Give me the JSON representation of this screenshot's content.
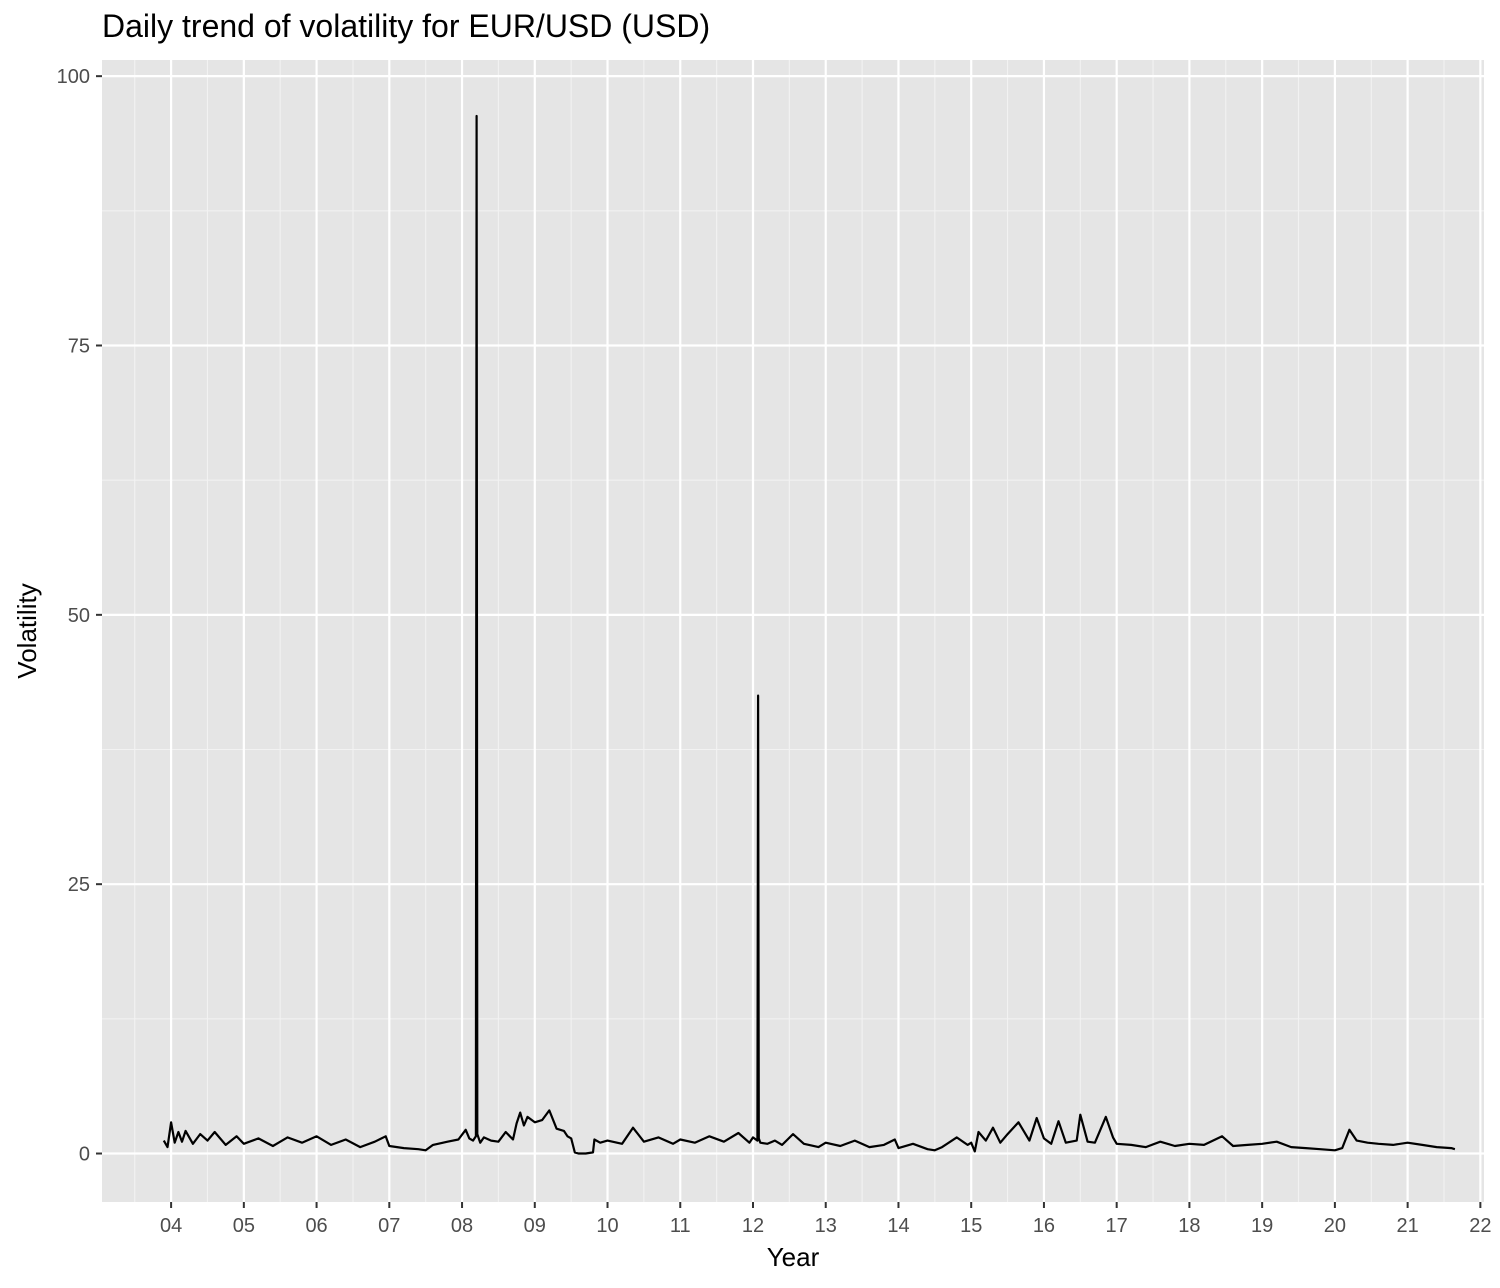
{
  "chart_data": {
    "type": "line",
    "title": "Daily trend of volatility for EUR/USD (USD)",
    "xlabel": "Year",
    "ylabel": "Volatility",
    "x_unit": "year",
    "xlim": [
      2003.05,
      2022.05
    ],
    "ylim": [
      -4.5,
      101.5
    ],
    "x_ticks": [
      {
        "value": 2004,
        "label": "04"
      },
      {
        "value": 2005,
        "label": "05"
      },
      {
        "value": 2006,
        "label": "06"
      },
      {
        "value": 2007,
        "label": "07"
      },
      {
        "value": 2008,
        "label": "08"
      },
      {
        "value": 2009,
        "label": "09"
      },
      {
        "value": 2010,
        "label": "10"
      },
      {
        "value": 2011,
        "label": "11"
      },
      {
        "value": 2012,
        "label": "12"
      },
      {
        "value": 2013,
        "label": "13"
      },
      {
        "value": 2014,
        "label": "14"
      },
      {
        "value": 2015,
        "label": "15"
      },
      {
        "value": 2016,
        "label": "16"
      },
      {
        "value": 2017,
        "label": "17"
      },
      {
        "value": 2018,
        "label": "18"
      },
      {
        "value": 2019,
        "label": "19"
      },
      {
        "value": 2020,
        "label": "20"
      },
      {
        "value": 2021,
        "label": "21"
      },
      {
        "value": 2022,
        "label": "22"
      }
    ],
    "y_ticks": [
      {
        "value": 0,
        "label": "0"
      },
      {
        "value": 25,
        "label": "25"
      },
      {
        "value": 50,
        "label": "50"
      },
      {
        "value": 75,
        "label": "75"
      },
      {
        "value": 100,
        "label": "100"
      }
    ],
    "grid": true,
    "legend": "none",
    "colors": {
      "panel": "#e5e5e5",
      "grid": "#ffffff",
      "line": "#000000",
      "tick_text": "#4d4d4d"
    },
    "series": [
      {
        "x": [
          2003.9,
          2003.95,
          2004.0,
          2004.05,
          2004.1,
          2004.15,
          2004.2,
          2004.3,
          2004.4,
          2004.5,
          2004.6,
          2004.75,
          2004.9,
          2005.0,
          2005.2,
          2005.4,
          2005.6,
          2005.8,
          2006.0,
          2006.2,
          2006.4,
          2006.6,
          2006.8,
          2006.95,
          2007.0,
          2007.2,
          2007.4,
          2007.5,
          2007.6,
          2007.8,
          2007.95,
          2008.05,
          2008.1,
          2008.15,
          2008.19,
          2008.2,
          2008.21,
          2008.25,
          2008.3,
          2008.4,
          2008.5,
          2008.6,
          2008.7,
          2008.75,
          2008.8,
          2008.85,
          2008.9,
          2009.0,
          2009.1,
          2009.2,
          2009.3,
          2009.4,
          2009.45,
          2009.5,
          2009.55,
          2009.6,
          2009.7,
          2009.8,
          2009.82,
          2009.9,
          2010.0,
          2010.2,
          2010.35,
          2010.5,
          2010.7,
          2010.9,
          2011.0,
          2011.2,
          2011.4,
          2011.6,
          2011.8,
          2011.95,
          2012.0,
          2012.06,
          2012.07,
          2012.08,
          2012.1,
          2012.2,
          2012.3,
          2012.4,
          2012.55,
          2012.7,
          2012.9,
          2013.0,
          2013.2,
          2013.4,
          2013.6,
          2013.8,
          2013.95,
          2014.0,
          2014.2,
          2014.4,
          2014.5,
          2014.6,
          2014.8,
          2014.95,
          2015.0,
          2015.05,
          2015.1,
          2015.2,
          2015.3,
          2015.4,
          2015.5,
          2015.65,
          2015.8,
          2015.9,
          2016.0,
          2016.1,
          2016.2,
          2016.3,
          2016.45,
          2016.5,
          2016.6,
          2016.7,
          2016.85,
          2016.95,
          2017.0,
          2017.2,
          2017.4,
          2017.6,
          2017.8,
          2018.0,
          2018.2,
          2018.45,
          2018.6,
          2018.8,
          2019.0,
          2019.2,
          2019.4,
          2019.6,
          2019.8,
          2020.0,
          2020.1,
          2020.2,
          2020.3,
          2020.45,
          2020.6,
          2020.8,
          2021.0,
          2021.2,
          2021.4,
          2021.6,
          2021.65
        ],
        "y": [
          1.2,
          0.6,
          2.9,
          1.0,
          2.0,
          1.1,
          2.1,
          0.9,
          1.8,
          1.2,
          2.0,
          0.8,
          1.6,
          0.9,
          1.4,
          0.7,
          1.5,
          1.0,
          1.6,
          0.8,
          1.3,
          0.6,
          1.1,
          1.6,
          0.7,
          0.5,
          0.4,
          0.3,
          0.8,
          1.1,
          1.3,
          2.2,
          1.4,
          1.2,
          1.6,
          96.3,
          1.8,
          1.0,
          1.5,
          1.2,
          1.1,
          2.0,
          1.3,
          2.8,
          3.8,
          2.6,
          3.4,
          2.9,
          3.1,
          4.0,
          2.3,
          2.1,
          1.6,
          1.4,
          0.1,
          0.0,
          0.0,
          0.1,
          1.3,
          1.0,
          1.2,
          0.9,
          2.4,
          1.1,
          1.5,
          0.9,
          1.3,
          1.0,
          1.6,
          1.1,
          1.9,
          1.0,
          1.5,
          1.2,
          42.5,
          1.4,
          1.0,
          0.9,
          1.2,
          0.8,
          1.8,
          0.9,
          0.6,
          1.0,
          0.7,
          1.2,
          0.6,
          0.8,
          1.3,
          0.5,
          0.9,
          0.4,
          0.3,
          0.6,
          1.5,
          0.8,
          1.0,
          0.2,
          2.0,
          1.2,
          2.4,
          1.0,
          1.8,
          2.9,
          1.2,
          3.3,
          1.4,
          0.9,
          3.0,
          1.0,
          1.2,
          3.6,
          1.1,
          1.0,
          3.4,
          1.5,
          0.9,
          0.8,
          0.6,
          1.1,
          0.7,
          0.9,
          0.8,
          1.6,
          0.7,
          0.8,
          0.9,
          1.1,
          0.6,
          0.5,
          0.4,
          0.3,
          0.5,
          2.2,
          1.2,
          1.0,
          0.9,
          0.8,
          1.0,
          0.8,
          0.6,
          0.5,
          0.4
        ]
      }
    ]
  }
}
